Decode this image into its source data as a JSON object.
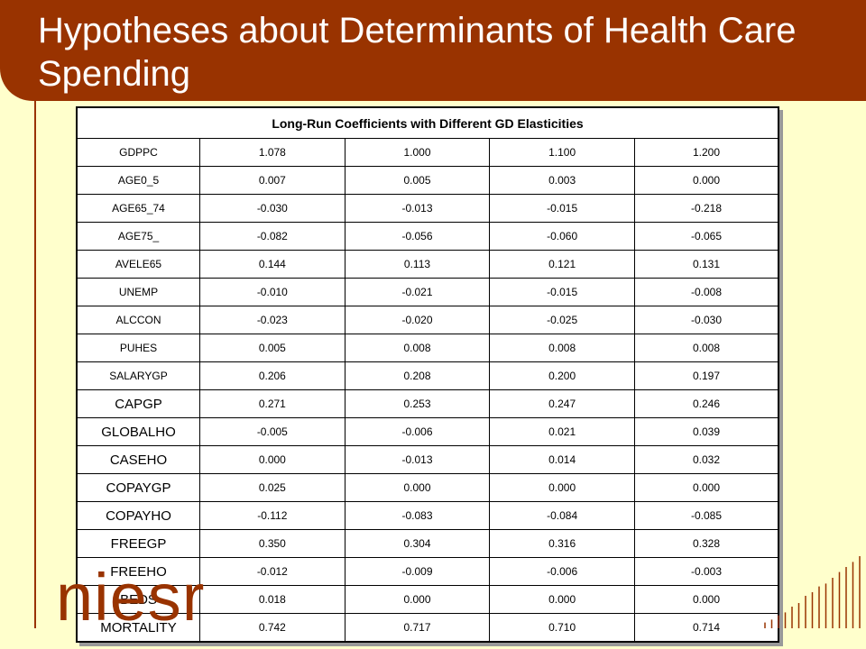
{
  "slide": {
    "title": "Hypotheses about Determinants of Health Care Spending",
    "logo_text": "niesr"
  },
  "table": {
    "caption": "Long-Run Coefficients with Different GD Elasticities",
    "rows": [
      {
        "label": "GDPPC",
        "large": false,
        "values": [
          "1.078",
          "1.000",
          "1.100",
          "1.200"
        ]
      },
      {
        "label": "AGE0_5",
        "large": false,
        "values": [
          "0.007",
          "0.005",
          "0.003",
          "0.000"
        ]
      },
      {
        "label": "AGE65_74",
        "large": false,
        "values": [
          "-0.030",
          "-0.013",
          "-0.015",
          "-0.218"
        ]
      },
      {
        "label": "AGE75_",
        "large": false,
        "values": [
          "-0.082",
          "-0.056",
          "-0.060",
          "-0.065"
        ]
      },
      {
        "label": "AVELE65",
        "large": false,
        "values": [
          "0.144",
          "0.113",
          "0.121",
          "0.131"
        ]
      },
      {
        "label": "UNEMP",
        "large": false,
        "values": [
          "-0.010",
          "-0.021",
          "-0.015",
          "-0.008"
        ]
      },
      {
        "label": "ALCCON",
        "large": false,
        "values": [
          "-0.023",
          "-0.020",
          "-0.025",
          "-0.030"
        ]
      },
      {
        "label": "PUHES",
        "large": false,
        "values": [
          "0.005",
          "0.008",
          "0.008",
          "0.008"
        ]
      },
      {
        "label": "SALARYGP",
        "large": false,
        "values": [
          "0.206",
          "0.208",
          "0.200",
          "0.197"
        ]
      },
      {
        "label": "CAPGP",
        "large": true,
        "values": [
          "0.271",
          "0.253",
          "0.247",
          "0.246"
        ]
      },
      {
        "label": "GLOBALHO",
        "large": true,
        "values": [
          "-0.005",
          "-0.006",
          "0.021",
          "0.039"
        ]
      },
      {
        "label": "CASEHO",
        "large": true,
        "values": [
          "0.000",
          "-0.013",
          "0.014",
          "0.032"
        ]
      },
      {
        "label": "COPAYGP",
        "large": true,
        "values": [
          "0.025",
          "0.000",
          "0.000",
          "0.000"
        ]
      },
      {
        "label": "COPAYHO",
        "large": true,
        "values": [
          "-0.112",
          "-0.083",
          "-0.084",
          "-0.085"
        ]
      },
      {
        "label": "FREEGP",
        "large": true,
        "values": [
          "0.350",
          "0.304",
          "0.316",
          "0.328"
        ]
      },
      {
        "label": "FREEHO",
        "large": true,
        "values": [
          "-0.012",
          "-0.009",
          "-0.006",
          "-0.003"
        ]
      },
      {
        "label": "BEDS",
        "large": true,
        "values": [
          "0.018",
          "0.000",
          "0.000",
          "0.000"
        ]
      },
      {
        "label": "MORTALITY",
        "large": true,
        "values": [
          "0.742",
          "0.717",
          "0.710",
          "0.714"
        ]
      }
    ]
  },
  "colors": {
    "brand": "#993300",
    "background": "#ffffcc",
    "table_bg": "#ffffff"
  },
  "decor": {
    "bar_levels": [
      0.08,
      0.12,
      0.18,
      0.22,
      0.3,
      0.35,
      0.45,
      0.5,
      0.58,
      0.62,
      0.7,
      0.78,
      0.85,
      0.92,
      1.0
    ]
  }
}
